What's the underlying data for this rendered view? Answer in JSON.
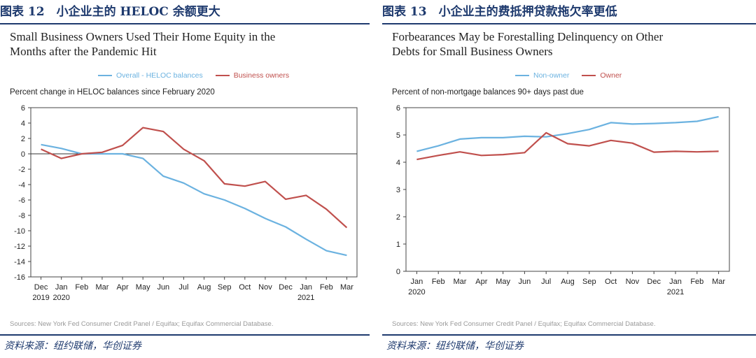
{
  "left": {
    "figure_header": "图表 12　小企业主的 HELOC 余额更大",
    "title_line1": "Small Business Owners Used Their Home Equity in the",
    "title_line2": "Months after the Pandemic Hit",
    "subtitle": "Percent change in HELOC balances since February 2020",
    "sources": "Sources: New York Fed Consumer Credit Panel / Equifax; Equifax Commercial Database.",
    "footnote": "资料来源：纽约联储，华创证券"
  },
  "right": {
    "figure_header": "图表 13　小企业主的费抵押贷款拖欠率更低",
    "title_line1": "Forbearances May be Forestalling Delinquency on Other",
    "title_line2": "Debts for Small Business Owners",
    "subtitle": "Percent of non-mortgage balances 90+ days past due",
    "sources": "Sources: New York Fed Consumer Credit Panel / Equifax; Equifax Commercial Database.",
    "footnote": "资料来源：纽约联储，华创证券"
  },
  "colors": {
    "blue": "#6bb2e0",
    "red": "#c0504d",
    "header": "#1e3a6e"
  },
  "chart_data": [
    {
      "type": "line",
      "title": "Small Business Owners Used Their Home Equity in the Months after the Pandemic Hit",
      "ylabel": "Percent change in HELOC balances since February 2020",
      "categories": [
        "Dec",
        "Jan",
        "Feb",
        "Mar",
        "Apr",
        "May",
        "Jun",
        "Jul",
        "Aug",
        "Sep",
        "Oct",
        "Nov",
        "Dec",
        "Jan",
        "Feb",
        "Mar"
      ],
      "year_labels": [
        {
          "index": 0,
          "label": "2019"
        },
        {
          "index": 1,
          "label": "2020"
        },
        {
          "index": 13,
          "label": "2021"
        }
      ],
      "ylim": [
        -16,
        6
      ],
      "yticks": [
        6,
        4,
        2,
        0,
        -2,
        -4,
        -6,
        -8,
        -10,
        -12,
        -14,
        -16
      ],
      "zero_line": true,
      "legend_position": "top-center",
      "series": [
        {
          "name": "Overall - HELOC balances",
          "color": "#6bb2e0",
          "values": [
            1.2,
            0.7,
            0.0,
            0.0,
            0.0,
            -0.6,
            -2.9,
            -3.8,
            -5.2,
            -6.0,
            -7.1,
            -8.4,
            -9.5,
            -11.1,
            -12.6,
            -13.2
          ]
        },
        {
          "name": "Business owners",
          "color": "#c0504d",
          "values": [
            0.6,
            -0.6,
            0.0,
            0.2,
            1.1,
            3.4,
            2.9,
            0.6,
            -0.9,
            -3.9,
            -4.2,
            -3.6,
            -5.9,
            -5.4,
            -7.2,
            -9.6
          ]
        }
      ]
    },
    {
      "type": "line",
      "title": "Forbearances May be Forestalling Delinquency on Other Debts for Small Business Owners",
      "ylabel": "Percent of non-mortgage balances 90+ days past due",
      "categories": [
        "Jan",
        "Feb",
        "Mar",
        "Apr",
        "May",
        "Jun",
        "Jul",
        "Aug",
        "Sep",
        "Oct",
        "Nov",
        "Dec",
        "Jan",
        "Feb",
        "Mar"
      ],
      "year_labels": [
        {
          "index": 0,
          "label": "2020"
        },
        {
          "index": 12,
          "label": "2021"
        }
      ],
      "ylim": [
        0,
        6
      ],
      "yticks": [
        6,
        5,
        4,
        3,
        2,
        1,
        0
      ],
      "zero_line": false,
      "legend_position": "top-center",
      "series": [
        {
          "name": "Non-owner",
          "color": "#6bb2e0",
          "values": [
            4.4,
            4.6,
            4.85,
            4.9,
            4.9,
            4.95,
            4.93,
            5.05,
            5.2,
            5.45,
            5.4,
            5.42,
            5.45,
            5.5,
            5.67
          ]
        },
        {
          "name": "Owner",
          "color": "#c0504d",
          "values": [
            4.1,
            4.25,
            4.38,
            4.25,
            4.28,
            4.35,
            5.08,
            4.68,
            4.6,
            4.8,
            4.7,
            4.37,
            4.4,
            4.38,
            4.4
          ]
        }
      ]
    }
  ]
}
